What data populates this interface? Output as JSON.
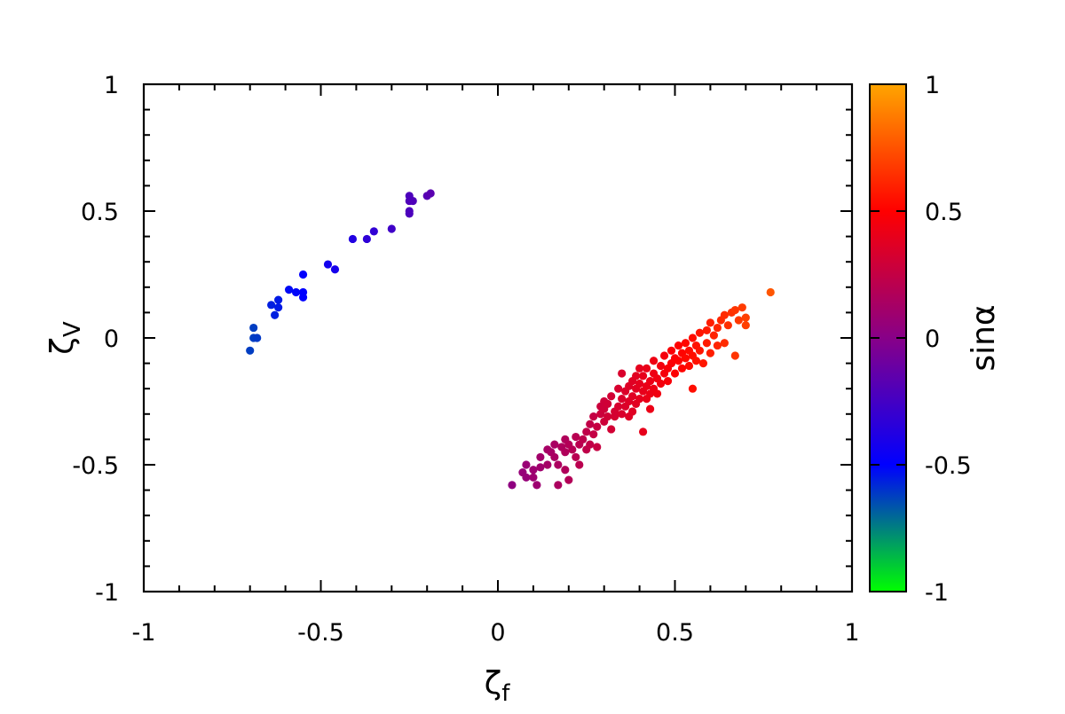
{
  "chart_data": {
    "type": "scatter",
    "title": "",
    "xlabel": {
      "main": "ζ",
      "sub": "f"
    },
    "ylabel": {
      "main": "ζ",
      "sub": "V"
    },
    "colorbar_label": "sinα",
    "xlim": [
      -1,
      1
    ],
    "ylim": [
      -1,
      1
    ],
    "clim": [
      -1,
      1
    ],
    "grid": false,
    "x_ticks": [
      -1,
      -0.5,
      0,
      0.5,
      1
    ],
    "x_tick_labels": [
      "-1",
      "-0.5",
      "0",
      "0.5",
      "1"
    ],
    "y_ticks": [
      -1,
      -0.5,
      0,
      0.5,
      1
    ],
    "y_tick_labels": [
      "-1",
      "-0.5",
      "0",
      "0.5",
      "1"
    ],
    "colorbar_ticks": [
      -1,
      -0.5,
      0,
      0.5,
      1
    ],
    "colorbar_tick_labels": [
      "-1",
      "-0.5",
      "0",
      "0.5",
      "1"
    ],
    "colormap": [
      "#00ff00",
      "#0000ff",
      "#880088",
      "#ff0000",
      "#ffa500"
    ],
    "points": [
      [
        -0.7,
        -0.05,
        -0.62
      ],
      [
        -0.69,
        0.0,
        -0.62
      ],
      [
        -0.68,
        0.0,
        -0.61
      ],
      [
        -0.69,
        0.04,
        -0.62
      ],
      [
        -0.64,
        0.13,
        -0.56
      ],
      [
        -0.62,
        0.15,
        -0.55
      ],
      [
        -0.62,
        0.12,
        -0.55
      ],
      [
        -0.63,
        0.09,
        -0.56
      ],
      [
        -0.59,
        0.19,
        -0.52
      ],
      [
        -0.57,
        0.18,
        -0.51
      ],
      [
        -0.55,
        0.18,
        -0.5
      ],
      [
        -0.55,
        0.16,
        -0.5
      ],
      [
        -0.55,
        0.25,
        -0.49
      ],
      [
        -0.48,
        0.29,
        -0.43
      ],
      [
        -0.46,
        0.27,
        -0.42
      ],
      [
        -0.41,
        0.39,
        -0.38
      ],
      [
        -0.37,
        0.39,
        -0.33
      ],
      [
        -0.35,
        0.42,
        -0.32
      ],
      [
        -0.3,
        0.43,
        -0.27
      ],
      [
        -0.25,
        0.49,
        -0.22
      ],
      [
        -0.25,
        0.5,
        -0.22
      ],
      [
        -0.25,
        0.54,
        -0.21
      ],
      [
        -0.24,
        0.54,
        -0.21
      ],
      [
        -0.25,
        0.56,
        -0.22
      ],
      [
        -0.2,
        0.56,
        -0.18
      ],
      [
        -0.19,
        0.57,
        -0.17
      ],
      [
        0.04,
        -0.58,
        0.03
      ],
      [
        0.07,
        -0.53,
        0.06
      ],
      [
        0.08,
        -0.5,
        0.07
      ],
      [
        0.08,
        -0.55,
        0.06
      ],
      [
        0.1,
        -0.52,
        0.09
      ],
      [
        0.1,
        -0.55,
        0.09
      ],
      [
        0.11,
        -0.58,
        0.09
      ],
      [
        0.12,
        -0.51,
        0.1
      ],
      [
        0.12,
        -0.47,
        0.11
      ],
      [
        0.14,
        -0.5,
        0.12
      ],
      [
        0.14,
        -0.44,
        0.13
      ],
      [
        0.15,
        -0.45,
        0.13
      ],
      [
        0.16,
        -0.42,
        0.14
      ],
      [
        0.16,
        -0.47,
        0.14
      ],
      [
        0.17,
        -0.5,
        0.15
      ],
      [
        0.17,
        -0.58,
        0.15
      ],
      [
        0.18,
        -0.43,
        0.16
      ],
      [
        0.19,
        -0.45,
        0.17
      ],
      [
        0.19,
        -0.52,
        0.17
      ],
      [
        0.19,
        -0.4,
        0.17
      ],
      [
        0.2,
        -0.42,
        0.18
      ],
      [
        0.2,
        -0.56,
        0.18
      ],
      [
        0.21,
        -0.44,
        0.19
      ],
      [
        0.22,
        -0.47,
        0.2
      ],
      [
        0.22,
        -0.39,
        0.2
      ],
      [
        0.23,
        -0.42,
        0.21
      ],
      [
        0.23,
        -0.5,
        0.21
      ],
      [
        0.24,
        -0.4,
        0.22
      ],
      [
        0.25,
        -0.37,
        0.23
      ],
      [
        0.25,
        -0.44,
        0.23
      ],
      [
        0.26,
        -0.34,
        0.24
      ],
      [
        0.26,
        -0.42,
        0.24
      ],
      [
        0.27,
        -0.31,
        0.25
      ],
      [
        0.27,
        -0.38,
        0.25
      ],
      [
        0.28,
        -0.43,
        0.26
      ],
      [
        0.28,
        -0.35,
        0.26
      ],
      [
        0.29,
        -0.27,
        0.28
      ],
      [
        0.29,
        -0.3,
        0.28
      ],
      [
        0.3,
        -0.25,
        0.29
      ],
      [
        0.3,
        -0.33,
        0.29
      ],
      [
        0.3,
        -0.28,
        0.29
      ],
      [
        0.31,
        -0.31,
        0.3
      ],
      [
        0.31,
        -0.26,
        0.3
      ],
      [
        0.32,
        -0.36,
        0.31
      ],
      [
        0.32,
        -0.23,
        0.31
      ],
      [
        0.33,
        -0.29,
        0.32
      ],
      [
        0.33,
        -0.31,
        0.32
      ],
      [
        0.34,
        -0.27,
        0.33
      ],
      [
        0.34,
        -0.2,
        0.33
      ],
      [
        0.35,
        -0.24,
        0.34
      ],
      [
        0.35,
        -0.3,
        0.34
      ],
      [
        0.35,
        -0.14,
        0.34
      ],
      [
        0.36,
        -0.21,
        0.35
      ],
      [
        0.36,
        -0.27,
        0.35
      ],
      [
        0.37,
        -0.19,
        0.36
      ],
      [
        0.37,
        -0.25,
        0.36
      ],
      [
        0.37,
        -0.31,
        0.36
      ],
      [
        0.38,
        -0.17,
        0.37
      ],
      [
        0.38,
        -0.23,
        0.37
      ],
      [
        0.38,
        -0.29,
        0.37
      ],
      [
        0.39,
        -0.15,
        0.38
      ],
      [
        0.39,
        -0.2,
        0.38
      ],
      [
        0.39,
        -0.26,
        0.38
      ],
      [
        0.4,
        -0.12,
        0.39
      ],
      [
        0.4,
        -0.18,
        0.39
      ],
      [
        0.4,
        -0.24,
        0.39
      ],
      [
        0.41,
        -0.21,
        0.4
      ],
      [
        0.41,
        -0.15,
        0.4
      ],
      [
        0.41,
        -0.37,
        0.4
      ],
      [
        0.42,
        -0.19,
        0.41
      ],
      [
        0.42,
        -0.24,
        0.41
      ],
      [
        0.42,
        -0.12,
        0.41
      ],
      [
        0.43,
        -0.17,
        0.42
      ],
      [
        0.43,
        -0.22,
        0.42
      ],
      [
        0.43,
        -0.28,
        0.42
      ],
      [
        0.44,
        -0.14,
        0.43
      ],
      [
        0.44,
        -0.2,
        0.43
      ],
      [
        0.44,
        -0.09,
        0.43
      ],
      [
        0.45,
        -0.16,
        0.44
      ],
      [
        0.45,
        -0.22,
        0.44
      ],
      [
        0.46,
        -0.11,
        0.45
      ],
      [
        0.46,
        -0.18,
        0.45
      ],
      [
        0.47,
        -0.14,
        0.46
      ],
      [
        0.47,
        -0.07,
        0.46
      ],
      [
        0.48,
        -0.12,
        0.47
      ],
      [
        0.48,
        -0.17,
        0.47
      ],
      [
        0.49,
        -0.05,
        0.48
      ],
      [
        0.49,
        -0.1,
        0.48
      ],
      [
        0.5,
        -0.08,
        0.49
      ],
      [
        0.5,
        -0.14,
        0.49
      ],
      [
        0.51,
        -0.03,
        0.5
      ],
      [
        0.51,
        -0.09,
        0.5
      ],
      [
        0.52,
        -0.06,
        0.51
      ],
      [
        0.52,
        -0.12,
        0.51
      ],
      [
        0.53,
        -0.02,
        0.52
      ],
      [
        0.53,
        -0.08,
        0.52
      ],
      [
        0.54,
        -0.05,
        0.53
      ],
      [
        0.54,
        -0.11,
        0.53
      ],
      [
        0.55,
        0.0,
        0.54
      ],
      [
        0.55,
        -0.07,
        0.54
      ],
      [
        0.55,
        -0.2,
        0.54
      ],
      [
        0.56,
        -0.03,
        0.55
      ],
      [
        0.56,
        -0.09,
        0.55
      ],
      [
        0.57,
        0.02,
        0.56
      ],
      [
        0.57,
        -0.05,
        0.56
      ],
      [
        0.58,
        -0.1,
        0.57
      ],
      [
        0.59,
        0.03,
        0.58
      ],
      [
        0.59,
        -0.02,
        0.58
      ],
      [
        0.6,
        0.06,
        0.59
      ],
      [
        0.6,
        -0.06,
        0.59
      ],
      [
        0.61,
        0.01,
        0.6
      ],
      [
        0.62,
        0.04,
        0.61
      ],
      [
        0.62,
        -0.03,
        0.61
      ],
      [
        0.63,
        0.07,
        0.62
      ],
      [
        0.64,
        0.09,
        0.63
      ],
      [
        0.64,
        -0.02,
        0.63
      ],
      [
        0.65,
        0.05,
        0.64
      ],
      [
        0.66,
        0.1,
        0.65
      ],
      [
        0.67,
        0.11,
        0.66
      ],
      [
        0.67,
        -0.07,
        0.66
      ],
      [
        0.68,
        0.07,
        0.67
      ],
      [
        0.69,
        0.12,
        0.68
      ],
      [
        0.7,
        0.08,
        0.69
      ],
      [
        0.7,
        0.05,
        0.69
      ],
      [
        0.77,
        0.18,
        0.76
      ]
    ]
  }
}
